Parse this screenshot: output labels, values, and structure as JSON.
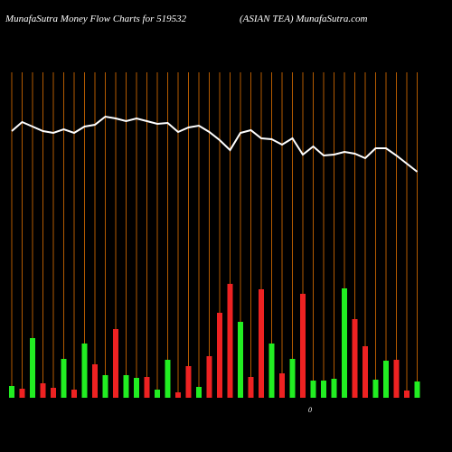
{
  "chart_data": {
    "type": "bar-line",
    "title": "MunafaSutra  Money Flow  Charts for 519532",
    "subtitle": "(ASIAN  TEA) MunafaSutra.com",
    "annotation": "0",
    "categories": [
      null,
      null,
      null,
      null,
      null,
      null,
      null,
      null,
      null,
      null,
      null,
      null,
      null,
      null,
      null,
      null,
      null,
      null,
      null,
      null,
      null,
      null,
      null,
      null,
      null,
      null,
      null,
      null,
      null,
      null,
      null,
      null,
      null,
      null,
      null,
      null,
      null,
      null,
      null,
      null
    ],
    "ylim": [
      0,
      360
    ],
    "grid_color": "#b35a00",
    "series": [
      {
        "type": "bar",
        "colors": [
          "#22ee22",
          "#ee2222",
          "#22ee22",
          "#ee2222",
          "#ee2222",
          "#22ee22",
          "#ee2222",
          "#22ee22",
          "#ee2222",
          "#22ee22",
          "#ee2222",
          "#22ee22",
          "#22ee22",
          "#ee2222",
          "#22ee22",
          "#22ee22",
          "#ee2222",
          "#ee2222",
          "#22ee22",
          "#ee2222",
          "#ee2222",
          "#ee2222",
          "#22ee22",
          "#ee2222",
          "#ee2222",
          "#22ee22",
          "#ee2222",
          "#22ee22",
          "#ee2222",
          "#22ee22",
          "#22ee22",
          "#22ee22",
          "#22ee22",
          "#ee2222",
          "#ee2222",
          "#22ee22",
          "#22ee22",
          "#ee2222",
          "#ee2222",
          "#22ee22"
        ],
        "values": [
          13,
          10,
          66,
          16,
          11,
          43,
          9,
          60,
          37,
          25,
          76,
          25,
          22,
          23,
          9,
          42,
          6,
          35,
          12,
          46,
          94,
          126,
          84,
          23,
          120,
          60,
          27,
          43,
          115,
          19,
          19,
          21,
          121,
          87,
          57,
          20,
          41,
          42,
          8,
          18
        ]
      },
      {
        "type": "line",
        "color": "#ffffff",
        "values": [
          295,
          305,
          300,
          295,
          293,
          297,
          293,
          300,
          302,
          311,
          309,
          306,
          309,
          306,
          303,
          304,
          294,
          299,
          301,
          294,
          285,
          274,
          293,
          296,
          287,
          286,
          280,
          287,
          269,
          278,
          268,
          269,
          272,
          270,
          265,
          276,
          276,
          268,
          259,
          250
        ]
      }
    ]
  }
}
